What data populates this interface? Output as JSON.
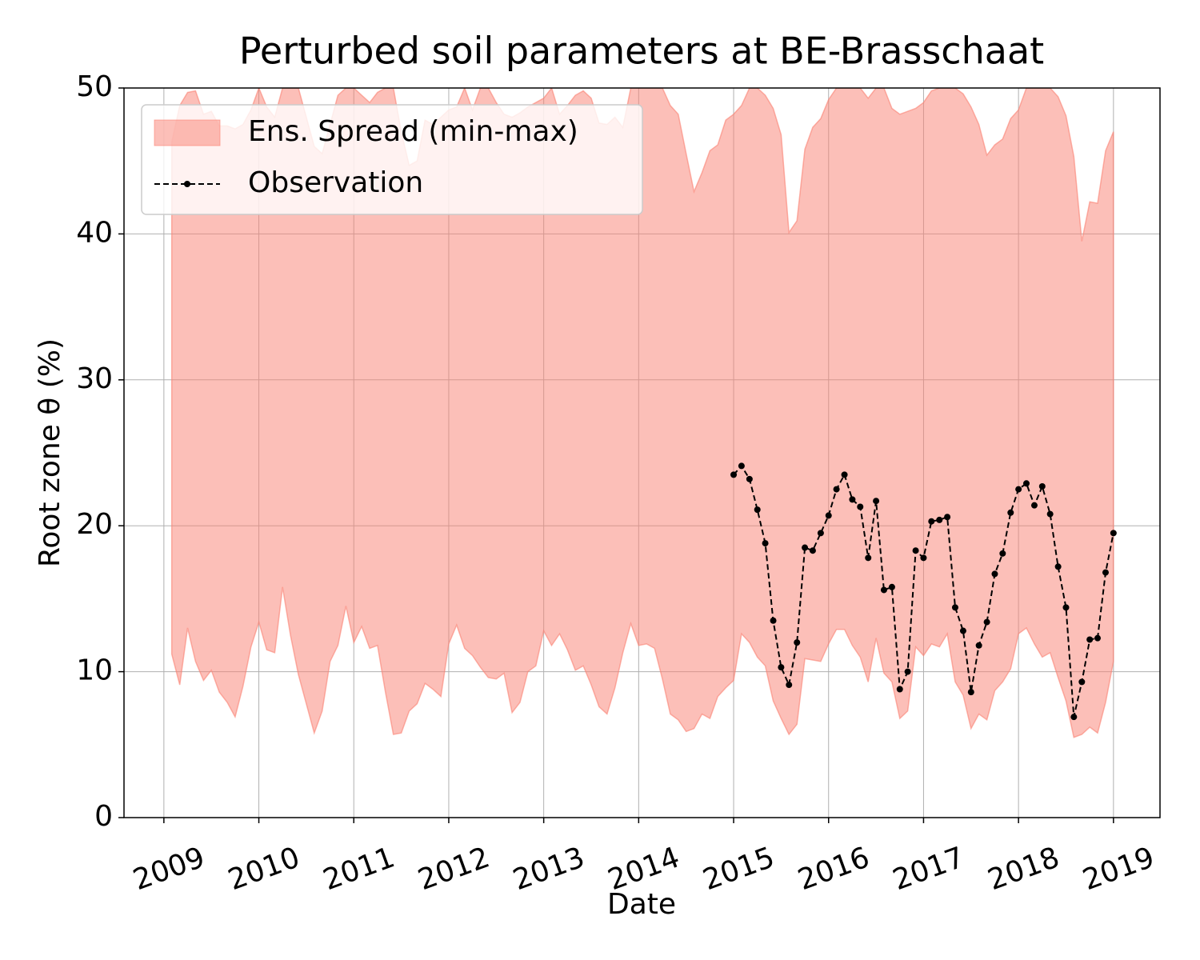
{
  "chart_data": {
    "type": "line",
    "title": "Perturbed soil parameters at BE-Brasschaat",
    "x_label": "Date",
    "y_label": "Root zone θ  (%)",
    "xlim": [
      2008.58,
      2019.49
    ],
    "ylim": [
      0,
      50
    ],
    "xticks": [
      2009,
      2010,
      2011,
      2012,
      2013,
      2014,
      2015,
      2016,
      2017,
      2018,
      2019
    ],
    "yticks": [
      0,
      10,
      20,
      30,
      40,
      50
    ],
    "grid": true,
    "legend": "upper left",
    "series": [
      {
        "name": "Ens. Spread (min-max)",
        "kind": "band",
        "color": "salmon",
        "x": [
          2009.083,
          2009.167,
          2009.25,
          2009.333,
          2009.417,
          2009.5,
          2009.583,
          2009.667,
          2009.75,
          2009.833,
          2009.917,
          2010,
          2010.083,
          2010.167,
          2010.25,
          2010.333,
          2010.417,
          2010.5,
          2010.583,
          2010.667,
          2010.75,
          2010.833,
          2010.917,
          2011,
          2011.083,
          2011.167,
          2011.25,
          2011.333,
          2011.417,
          2011.5,
          2011.583,
          2011.667,
          2011.75,
          2011.833,
          2011.917,
          2012,
          2012.083,
          2012.167,
          2012.25,
          2012.333,
          2012.417,
          2012.5,
          2012.583,
          2012.667,
          2012.75,
          2012.833,
          2012.917,
          2013,
          2013.083,
          2013.167,
          2013.25,
          2013.333,
          2013.417,
          2013.5,
          2013.583,
          2013.667,
          2013.75,
          2013.833,
          2013.917,
          2014,
          2014.083,
          2014.167,
          2014.25,
          2014.333,
          2014.417,
          2014.5,
          2014.583,
          2014.667,
          2014.75,
          2014.833,
          2014.917,
          2015,
          2015.083,
          2015.167,
          2015.25,
          2015.333,
          2015.417,
          2015.5,
          2015.583,
          2015.667,
          2015.75,
          2015.833,
          2015.917,
          2016,
          2016.083,
          2016.167,
          2016.25,
          2016.333,
          2016.417,
          2016.5,
          2016.583,
          2016.667,
          2016.75,
          2016.833,
          2016.917,
          2017,
          2017.083,
          2017.167,
          2017.25,
          2017.333,
          2017.417,
          2017.5,
          2017.583,
          2017.667,
          2017.75,
          2017.833,
          2017.917,
          2018,
          2018.083,
          2018.167,
          2018.25,
          2018.333,
          2018.417,
          2018.5,
          2018.583,
          2018.667,
          2018.75,
          2018.833,
          2018.917,
          2019
        ],
        "lower": [
          11.2,
          9.1,
          13.0,
          10.7,
          9.4,
          10.1,
          8.6,
          7.9,
          6.9,
          9.0,
          11.7,
          13.4,
          11.5,
          11.3,
          15.8,
          12.5,
          9.8,
          7.8,
          5.8,
          7.3,
          10.7,
          11.8,
          14.5,
          12.0,
          13.1,
          11.6,
          11.8,
          8.6,
          5.7,
          5.8,
          7.3,
          7.8,
          9.2,
          8.8,
          8.3,
          11.9,
          13.2,
          11.6,
          11.1,
          10.3,
          9.6,
          9.5,
          9.9,
          7.2,
          7.9,
          10.0,
          10.4,
          12.8,
          11.8,
          12.6,
          11.5,
          10.1,
          10.4,
          9.1,
          7.6,
          7.1,
          8.9,
          11.3,
          13.3,
          11.8,
          11.9,
          11.6,
          9.5,
          7.1,
          6.7,
          5.9,
          6.1,
          7.1,
          6.8,
          8.3,
          8.9,
          9.4,
          12.6,
          12.0,
          11.0,
          10.4,
          8.0,
          6.8,
          5.7,
          6.4,
          10.9,
          10.8,
          10.7,
          11.9,
          12.9,
          12.9,
          11.8,
          11.0,
          9.3,
          12.3,
          9.9,
          9.3,
          6.8,
          7.3,
          11.7,
          11.1,
          11.9,
          11.7,
          12.6,
          9.3,
          8.4,
          6.1,
          7.1,
          6.7,
          8.7,
          9.3,
          10.2,
          12.6,
          13.0,
          11.9,
          11.0,
          11.3,
          9.6,
          8.0,
          5.5,
          5.7,
          6.2,
          5.8,
          7.9,
          10.7
        ],
        "upper": [
          46.3,
          48.8,
          49.7,
          49.8,
          48.2,
          48.4,
          47.4,
          47.4,
          47.2,
          47.5,
          48.5,
          50.0,
          48.7,
          48.0,
          50.0,
          50.0,
          50.0,
          48.0,
          46.0,
          45.5,
          47.5,
          49.5,
          50.0,
          50.0,
          49.5,
          49.0,
          49.7,
          50.0,
          50.0,
          47.0,
          44.7,
          45.0,
          47.8,
          47.5,
          48.0,
          48.5,
          48.7,
          50.0,
          48.5,
          50.0,
          50.0,
          49.0,
          48.2,
          48.0,
          48.3,
          48.7,
          49.0,
          49.3,
          50.0,
          48.2,
          48.8,
          49.5,
          49.8,
          49.3,
          47.6,
          47.5,
          48.0,
          47.3,
          50.0,
          50.0,
          50.0,
          50.0,
          50.0,
          48.8,
          48.2,
          45.5,
          42.9,
          44.2,
          45.7,
          46.1,
          47.8,
          48.2,
          48.8,
          50.0,
          50.0,
          49.5,
          48.6,
          46.8,
          40.1,
          40.9,
          45.8,
          47.3,
          47.9,
          49.2,
          50.0,
          50.0,
          50.0,
          50.0,
          49.3,
          50.0,
          50.0,
          48.6,
          48.2,
          48.4,
          48.6,
          49.0,
          49.8,
          50.0,
          50.0,
          50.0,
          49.6,
          48.7,
          47.5,
          45.4,
          46.1,
          46.5,
          47.9,
          48.5,
          50.0,
          50.0,
          50.0,
          50.0,
          49.4,
          48.1,
          45.3,
          39.5,
          42.2,
          42.1,
          45.7,
          47.0
        ]
      },
      {
        "name": "Observation",
        "kind": "line",
        "color": "#000000",
        "x": [
          2015,
          2015.083,
          2015.167,
          2015.25,
          2015.333,
          2015.417,
          2015.5,
          2015.583,
          2015.667,
          2015.75,
          2015.833,
          2015.917,
          2016,
          2016.083,
          2016.167,
          2016.25,
          2016.333,
          2016.417,
          2016.5,
          2016.583,
          2016.667,
          2016.75,
          2016.833,
          2016.917,
          2017,
          2017.083,
          2017.167,
          2017.25,
          2017.333,
          2017.417,
          2017.5,
          2017.583,
          2017.667,
          2017.75,
          2017.833,
          2017.917,
          2018,
          2018.083,
          2018.167,
          2018.25,
          2018.333,
          2018.417,
          2018.5,
          2018.583,
          2018.667,
          2018.75,
          2018.833,
          2018.917,
          2019
        ],
        "values": [
          23.5,
          24.1,
          23.2,
          21.1,
          18.8,
          13.5,
          10.3,
          9.1,
          12.0,
          18.5,
          18.3,
          19.5,
          20.7,
          22.5,
          23.5,
          21.8,
          21.3,
          17.8,
          21.7,
          15.6,
          15.8,
          8.8,
          10.0,
          18.3,
          17.8,
          20.3,
          20.4,
          20.6,
          14.4,
          12.8,
          8.6,
          11.8,
          13.4,
          16.7,
          18.1,
          20.9,
          22.5,
          22.9,
          21.4,
          22.7,
          20.8,
          17.2,
          14.4,
          6.9,
          9.3,
          12.2,
          12.3,
          16.8,
          19.5
        ]
      }
    ]
  }
}
